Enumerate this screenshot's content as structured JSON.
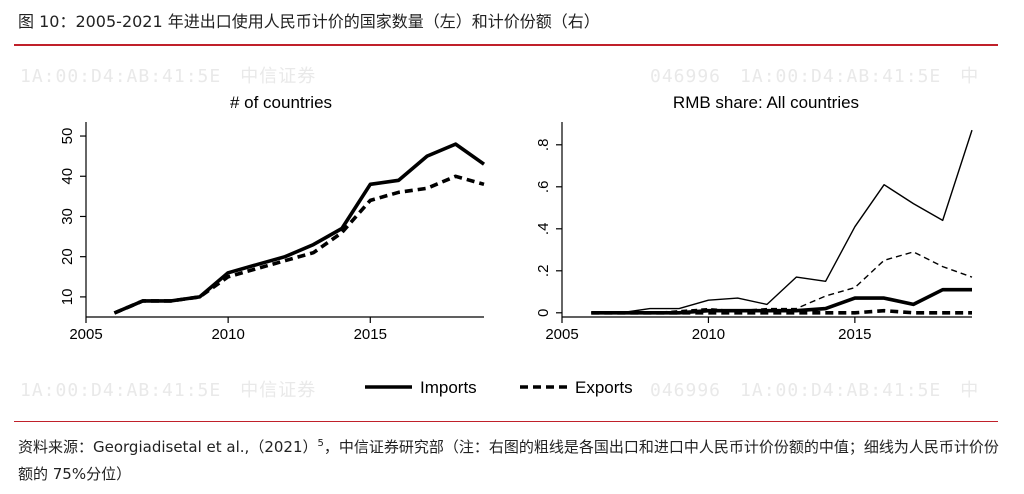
{
  "figure": {
    "title": "图 10：2005-2021 年进出口使用人民币计价的国家数量（左）和计价份额（右）",
    "source_prefix": "资料来源：Georgiadisetal et al.,（2021）",
    "source_sup": "5",
    "source_suffix": "，中信证券研究部（注：右图的粗线是各国出口和进口中人民币计价份额的中值；细线为人民币计价份额的 75%分位）",
    "watermark_texts": [
      "1A:00:D4:AB:41:5E　中信证券",
      "046996　1A:00:D4:AB:41:5E　中",
      "1A:00:D4:AB:41:5E　中信证券",
      "046996　1A:00:D4:AB:41:5E　中"
    ]
  },
  "legend": {
    "imports": "Imports",
    "exports": "Exports"
  },
  "chart_data": [
    {
      "type": "line",
      "title": "# of countries",
      "xlim": [
        2005,
        2019
      ],
      "ylim": [
        5,
        52
      ],
      "xticks": [
        2005,
        2010,
        2015
      ],
      "yticks": [
        10,
        20,
        30,
        40,
        50
      ],
      "xtick_labels": [
        "2005",
        "2010",
        "2015"
      ],
      "ytick_labels": [
        "10",
        "20",
        "30",
        "40",
        "50"
      ],
      "x": [
        2006,
        2007,
        2008,
        2009,
        2010,
        2011,
        2012,
        2013,
        2014,
        2015,
        2016,
        2017,
        2018,
        2019
      ],
      "series": [
        {
          "name": "Imports",
          "style": "solid-thick",
          "values": [
            6,
            9,
            9,
            10,
            16,
            18,
            20,
            23,
            27,
            38,
            39,
            45,
            48,
            43
          ]
        },
        {
          "name": "Exports",
          "style": "dashed-thick",
          "values": [
            6,
            9,
            9,
            10,
            15,
            17,
            19,
            21,
            26,
            34,
            36,
            37,
            40,
            38
          ]
        }
      ],
      "grid": false,
      "legend": "bottom"
    },
    {
      "type": "line",
      "title": "RMB share: All countries",
      "xlim": [
        2005,
        2019
      ],
      "ylim": [
        -0.02,
        0.88
      ],
      "xticks": [
        2005,
        2010,
        2015
      ],
      "yticks": [
        0,
        0.2,
        0.4,
        0.6,
        0.8
      ],
      "xtick_labels": [
        "2005",
        "2010",
        "2015"
      ],
      "ytick_labels": [
        "0",
        ".2",
        ".4",
        ".6",
        ".8"
      ],
      "x": [
        2006,
        2007,
        2008,
        2009,
        2010,
        2011,
        2012,
        2013,
        2014,
        2015,
        2016,
        2017,
        2018,
        2019
      ],
      "series": [
        {
          "name": "Imports median",
          "style": "solid-thick",
          "values": [
            0.0,
            0.0,
            0.0,
            0.0,
            0.01,
            0.01,
            0.01,
            0.01,
            0.02,
            0.07,
            0.07,
            0.04,
            0.11,
            0.11
          ]
        },
        {
          "name": "Exports median",
          "style": "dashed-thick",
          "values": [
            0.0,
            0.0,
            0.0,
            0.0,
            0.0,
            0.0,
            0.0,
            0.0,
            0.0,
            0.0,
            0.01,
            0.0,
            0.0,
            0.0
          ]
        },
        {
          "name": "Imports 75th percentile",
          "style": "solid-thin",
          "values": [
            0.0,
            0.0,
            0.02,
            0.02,
            0.06,
            0.07,
            0.04,
            0.17,
            0.15,
            0.41,
            0.61,
            0.52,
            0.44,
            0.87
          ]
        },
        {
          "name": "Exports 75th percentile",
          "style": "dashed-thin",
          "values": [
            0.0,
            0.0,
            0.0,
            0.01,
            0.02,
            0.01,
            0.02,
            0.02,
            0.08,
            0.12,
            0.25,
            0.29,
            0.22,
            0.17
          ]
        }
      ],
      "grid": false,
      "legend": "bottom"
    }
  ]
}
